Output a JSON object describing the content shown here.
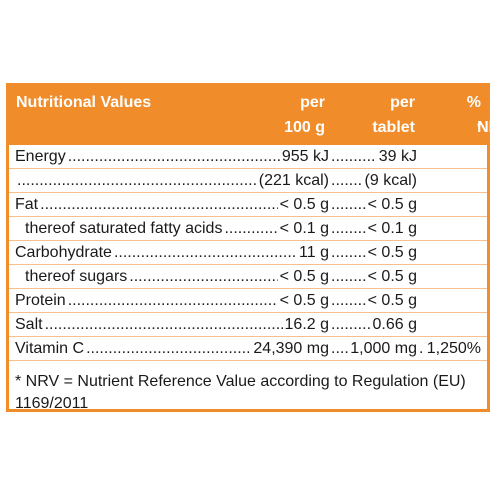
{
  "header": {
    "title": "Nutritional Values",
    "col1_line1": "per",
    "col1_line2": "100 g",
    "col2_line1": "per",
    "col2_line2": "tablet",
    "col3_line1": "%",
    "col3_line2": "NRV",
    "col3_mark": "*"
  },
  "rows": [
    {
      "name": "Energy",
      "per100": "955 kJ",
      "pertab": "39 kJ",
      "nrv": ""
    },
    {
      "name": "",
      "per100": "(221 kcal)",
      "pertab": "(9 kcal)",
      "nrv": ""
    },
    {
      "name": "Fat",
      "per100": "< 0.5 g",
      "pertab": "< 0.5 g",
      "nrv": ""
    },
    {
      "name": "thereof saturated fatty acids",
      "per100": "< 0.1 g",
      "pertab": "< 0.1 g",
      "nrv": ""
    },
    {
      "name": "Carbohydrate",
      "per100": "11 g",
      "pertab": "< 0.5 g",
      "nrv": ""
    },
    {
      "name": "thereof sugars",
      "per100": "< 0.5 g",
      "pertab": "< 0.5 g",
      "nrv": ""
    },
    {
      "name": "Protein",
      "per100": "< 0.5 g",
      "pertab": "< 0.5 g",
      "nrv": ""
    },
    {
      "name": "Salt",
      "per100": "16.2 g",
      "pertab": "0.66 g",
      "nrv": ""
    },
    {
      "name": "Vitamin C",
      "per100": "24,390 mg",
      "pertab": "1,000 mg",
      "nrv": "1,250%"
    }
  ],
  "footnote": "* NRV = Nutrient Reference Value according to Regulation (EU) 1169/2011",
  "colors": {
    "accent": "#f08c2a",
    "text": "#1a1a1a"
  }
}
